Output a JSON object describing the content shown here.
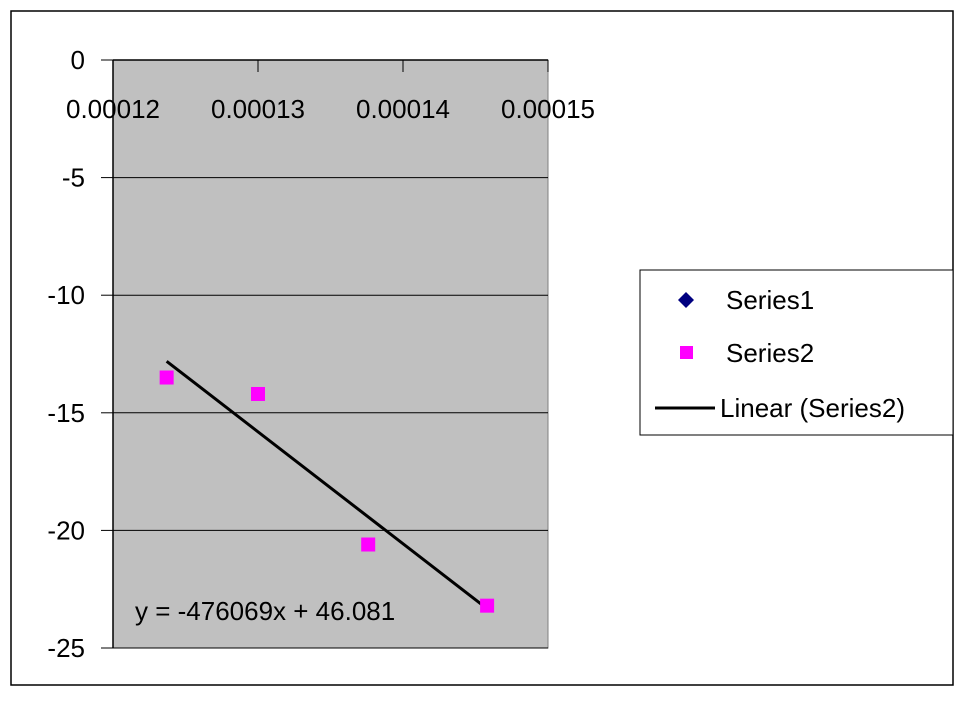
{
  "chart_data": {
    "type": "scatter",
    "xlim": [
      0.00012,
      0.00015
    ],
    "ylim": [
      -25,
      0
    ],
    "x_ticks": [
      "0.00012",
      "0.00013",
      "0.00014",
      "0.00015"
    ],
    "y_ticks": [
      "0",
      "-5",
      "-10",
      "-15",
      "-20",
      "-25"
    ],
    "x_axis_position": "top",
    "grid": true,
    "plot_background": "#c0c0c0",
    "legend_position": "right",
    "series": [
      {
        "name": "Series1",
        "marker": "diamond",
        "color": "#000080",
        "points": []
      },
      {
        "name": "Series2",
        "marker": "square",
        "color": "#ff00ff",
        "points": [
          {
            "x": 0.0001237,
            "y": -13.5
          },
          {
            "x": 0.00013,
            "y": -14.2
          },
          {
            "x": 0.0001376,
            "y": -20.6
          },
          {
            "x": 0.0001458,
            "y": -23.2
          }
        ]
      }
    ],
    "trendline": {
      "name": "Linear (Series2)",
      "series": "Series2",
      "slope": -476069,
      "intercept": 46.081,
      "x_start": 0.0001237,
      "x_end": 0.0001458,
      "color": "#000000",
      "equation_label": "y = -476069x + 46.081"
    }
  }
}
